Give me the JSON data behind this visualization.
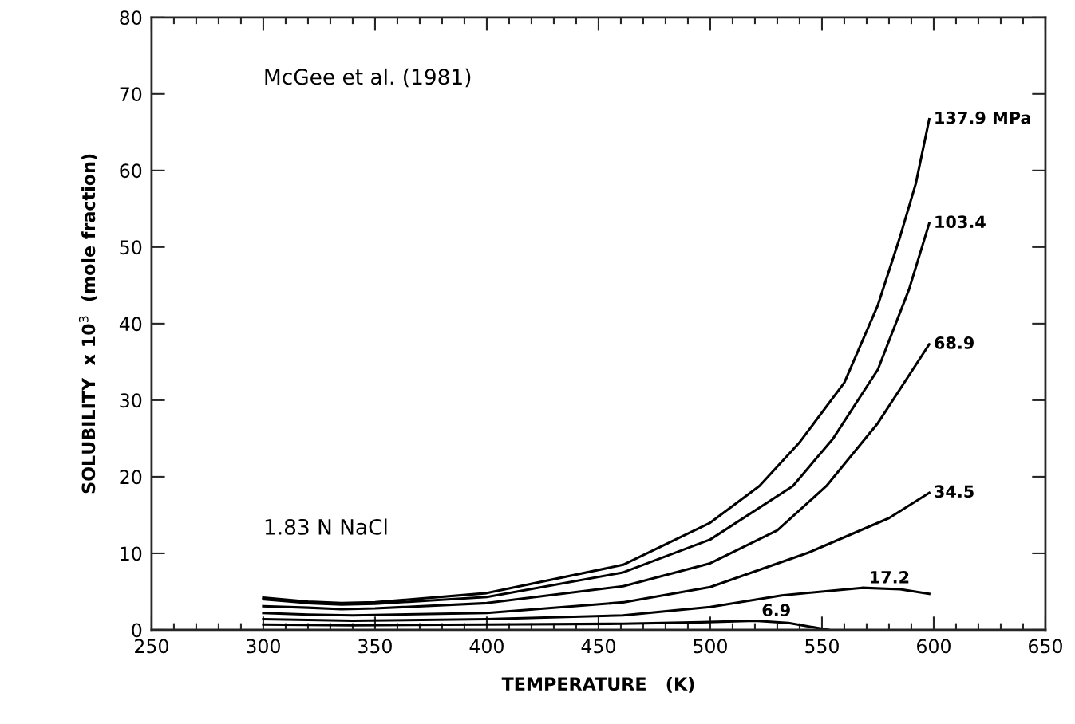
{
  "chart_data": {
    "type": "line",
    "xlabel": "TEMPERATURE   (K)",
    "ylabel": "SOLUBILITY  x 10$^{3}$  (mole fraction)",
    "xlim": [
      250,
      650
    ],
    "ylim": [
      0,
      80
    ],
    "xticks": [
      250,
      300,
      350,
      400,
      450,
      500,
      550,
      600,
      650
    ],
    "yticks": [
      0,
      10,
      20,
      30,
      40,
      50,
      60,
      70,
      80
    ],
    "grid": false,
    "legend": false,
    "marker": "none",
    "line_style": "solid",
    "annotations": [
      "McGee et al. (1981)",
      "1.83 N NaCl"
    ],
    "series": [
      {
        "name": "137.9 MPa",
        "color": "#000000",
        "x": [
          300,
          320,
          335,
          350,
          400,
          461,
          500,
          522,
          540,
          560,
          575,
          585,
          592,
          598
        ],
        "values": [
          4.2,
          3.7,
          3.5,
          3.6,
          4.8,
          8.5,
          14,
          18.8,
          24.5,
          32.3,
          42.4,
          51.4,
          58.3,
          66.7
        ]
      },
      {
        "name": "103.4",
        "color": "#000000",
        "x": [
          300,
          320,
          335,
          350,
          400,
          461,
          500,
          537,
          555,
          575,
          589,
          598
        ],
        "values": [
          4.0,
          3.5,
          3.3,
          3.4,
          4.3,
          7.5,
          11.8,
          18.8,
          25,
          34,
          44.5,
          53.1
        ]
      },
      {
        "name": "68.9",
        "color": "#000000",
        "x": [
          300,
          320,
          335,
          350,
          400,
          461,
          500,
          530,
          552,
          575,
          598
        ],
        "values": [
          3.1,
          2.9,
          2.7,
          2.8,
          3.5,
          5.7,
          8.7,
          13,
          18.8,
          27,
          37.3
        ]
      },
      {
        "name": "34.5",
        "color": "#000000",
        "x": [
          300,
          320,
          340,
          400,
          461,
          500,
          544,
          580,
          598
        ],
        "values": [
          2.2,
          2.0,
          1.9,
          2.2,
          3.6,
          5.6,
          10.1,
          14.6,
          17.9
        ]
      },
      {
        "name": "17.2",
        "color": "#000000",
        "x": [
          300,
          320,
          340,
          400,
          461,
          500,
          532,
          568,
          585,
          598
        ],
        "values": [
          1.4,
          1.3,
          1.2,
          1.4,
          1.9,
          3.0,
          4.5,
          5.5,
          5.3,
          4.7
        ]
      },
      {
        "name": "6.9",
        "color": "#000000",
        "x": [
          300,
          340,
          400,
          461,
          496,
          520,
          535,
          553
        ],
        "values": [
          0.7,
          0.6,
          0.7,
          0.8,
          1.0,
          1.2,
          0.9,
          0
        ]
      }
    ]
  }
}
